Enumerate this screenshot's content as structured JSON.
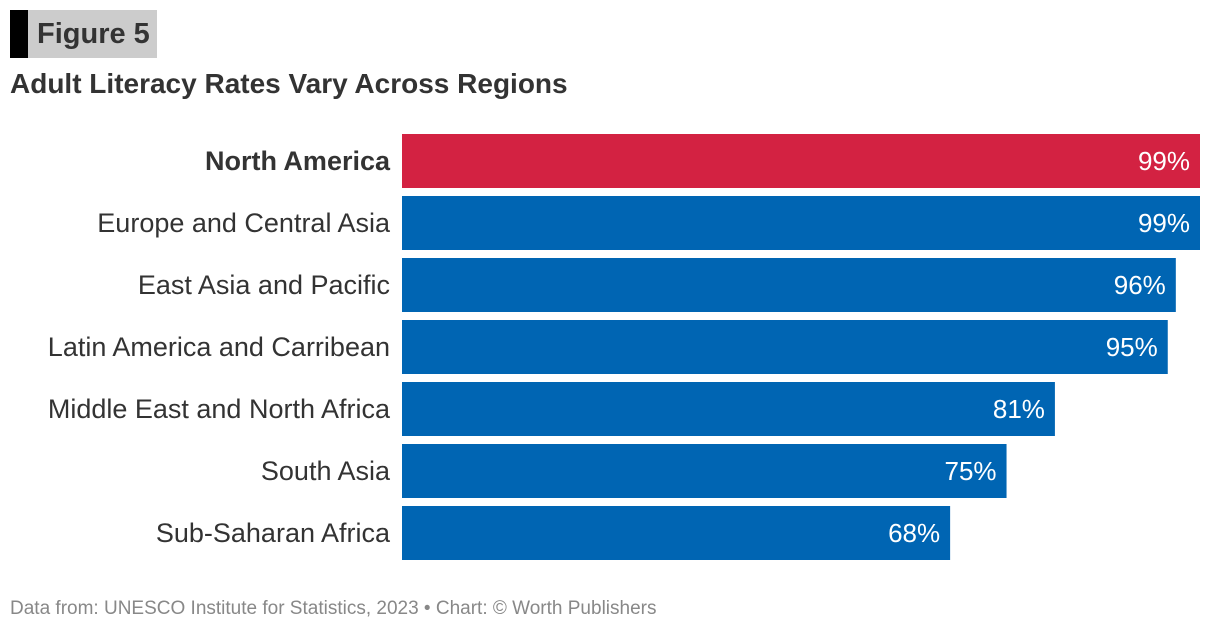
{
  "figure_label": "Figure 5",
  "footer": "Data from: UNESCO Institute for Statistics, 2023 • Chart: © Worth Publishers",
  "chart_data": {
    "type": "bar",
    "orientation": "horizontal",
    "title": "Adult Literacy Rates Vary Across Regions",
    "categories": [
      "North America",
      "Europe and Central Asia",
      "East Asia and Pacific",
      "Latin America and Carribean",
      "Middle East and North Africa",
      "South Asia",
      "Sub-Saharan Africa"
    ],
    "values": [
      99,
      99,
      96,
      95,
      81,
      75,
      68
    ],
    "labels": [
      "99%",
      "99%",
      "96%",
      "95%",
      "81%",
      "75%",
      "68%"
    ],
    "highlight": "North America",
    "colors": {
      "highlight": "#d32242",
      "default": "#0065b3"
    },
    "xlim": [
      0,
      99
    ],
    "grid": false,
    "unit": "%"
  }
}
